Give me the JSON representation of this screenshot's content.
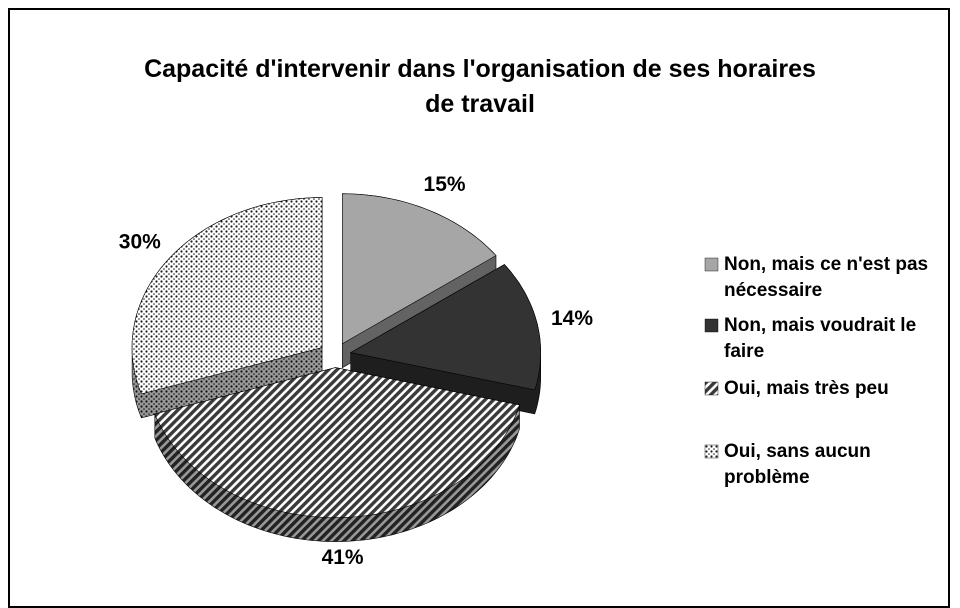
{
  "chart_data": {
    "type": "pie3d",
    "title": "Capacité d'intervenir dans l'organisation de ses horaires de travail",
    "categories": [
      "Non, mais ce n'est pas nécessaire",
      "Non, mais voudrait le faire",
      "Oui, mais très peu",
      "Oui, sans aucun problème"
    ],
    "values": [
      15,
      14,
      41,
      30
    ],
    "value_labels": [
      "15%",
      "14%",
      "41%",
      "30%"
    ],
    "colors": [
      "#a6a6a6",
      "#333333",
      "#3a3a3a",
      "#1a1a1a"
    ],
    "fills": [
      "solid",
      "solid",
      "stripes",
      "dots"
    ],
    "legend": "right"
  }
}
